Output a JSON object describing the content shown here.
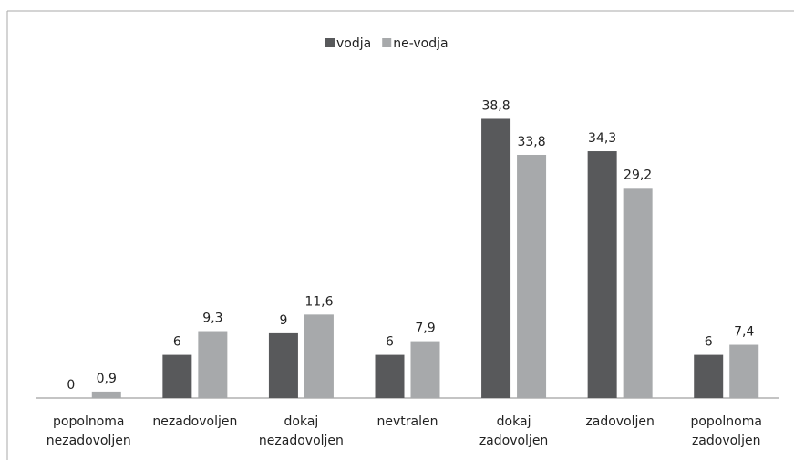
{
  "chart_data": {
    "type": "bar",
    "categories": [
      "popolnoma nezadovoljen",
      "nezadovoljen",
      "dokaj nezadovoljen",
      "nevtralen",
      "dokaj zadovoljen",
      "zadovoljen",
      "popolnoma zadovoljen"
    ],
    "series": [
      {
        "name": "vodja",
        "color": "#58595b",
        "values": [
          0,
          6,
          9,
          6,
          38.8,
          34.3,
          6
        ],
        "value_labels": [
          "0",
          "6",
          "9",
          "6",
          "38,8",
          "34,3",
          "6"
        ]
      },
      {
        "name": "ne-vodja",
        "color": "#a7a9ab",
        "values": [
          0.9,
          9.3,
          11.6,
          7.9,
          33.8,
          29.2,
          7.4
        ],
        "value_labels": [
          "0,9",
          "9,3",
          "11,6",
          "7,9",
          "33,8",
          "29,2",
          "7,4"
        ]
      }
    ],
    "ylim": [
      0,
      40
    ],
    "legend": "top"
  }
}
